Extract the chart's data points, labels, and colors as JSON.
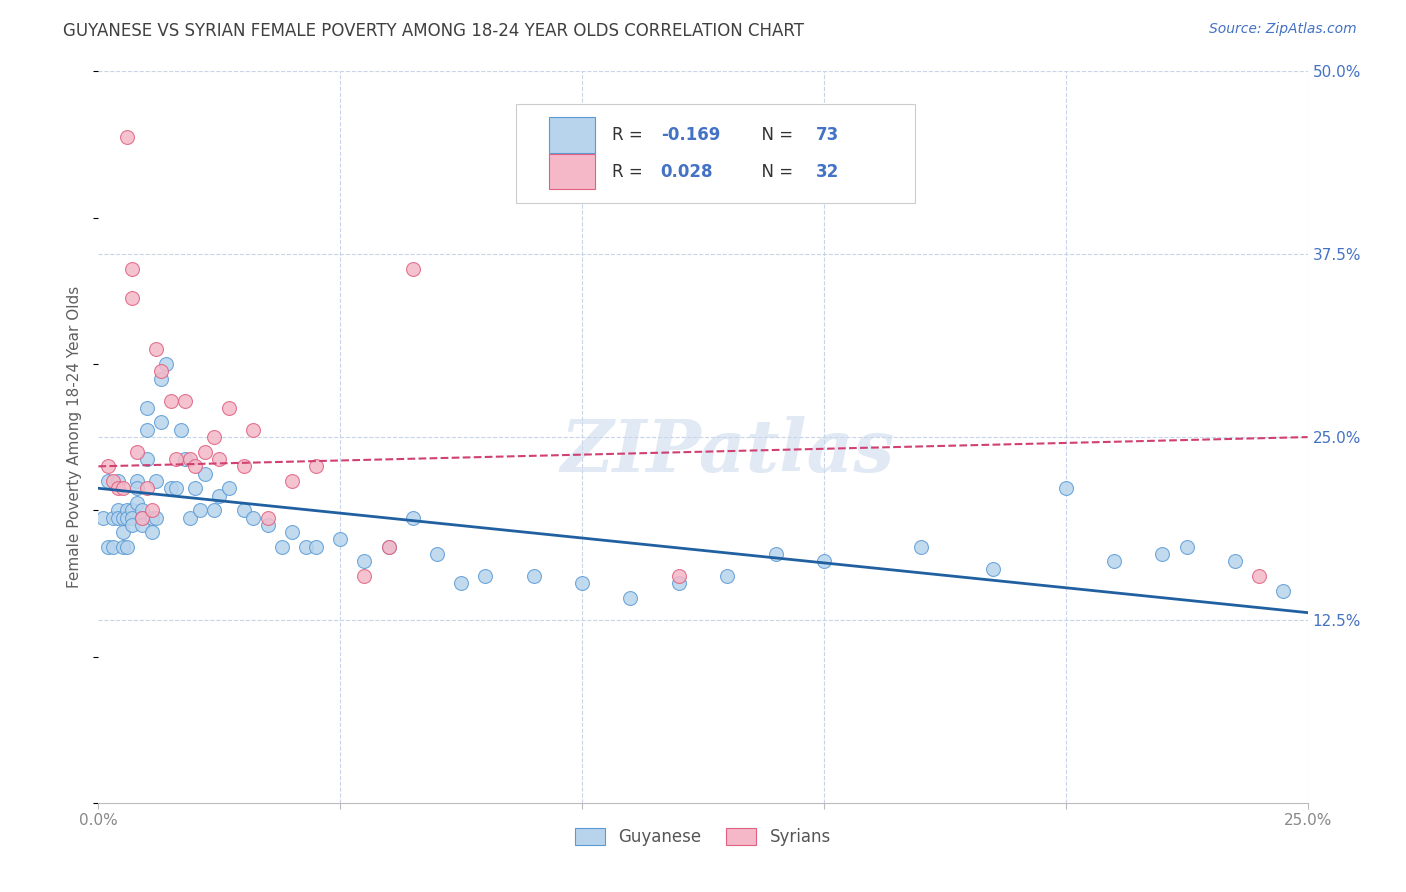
{
  "title": "GUYANESE VS SYRIAN FEMALE POVERTY AMONG 18-24 YEAR OLDS CORRELATION CHART",
  "source": "Source: ZipAtlas.com",
  "ylabel": "Female Poverty Among 18-24 Year Olds",
  "xlim": [
    0.0,
    0.25
  ],
  "ylim": [
    0.0,
    0.5
  ],
  "legend_R_guyanese": "-0.169",
  "legend_N_guyanese": "73",
  "legend_R_syrians": "0.028",
  "legend_N_syrians": "32",
  "color_guyanese_fill": "#b8d4ec",
  "color_guyanese_edge": "#5b9bd5",
  "color_syrians_fill": "#f4b8c8",
  "color_syrians_edge": "#e06080",
  "color_line_guyanese": "#2060a0",
  "color_line_syrians": "#d04070",
  "watermark": "ZIPatlas",
  "background_color": "#ffffff",
  "grid_color": "#c8d4e8",
  "title_color": "#404040",
  "source_color": "#4472c4",
  "axis_label_color": "#606060",
  "tick_color_right": "#4472c4",
  "guyanese_x": [
    0.001,
    0.002,
    0.002,
    0.003,
    0.003,
    0.004,
    0.004,
    0.004,
    0.005,
    0.005,
    0.005,
    0.006,
    0.006,
    0.006,
    0.007,
    0.007,
    0.007,
    0.008,
    0.008,
    0.008,
    0.009,
    0.009,
    0.009,
    0.01,
    0.01,
    0.01,
    0.011,
    0.011,
    0.012,
    0.012,
    0.013,
    0.013,
    0.014,
    0.015,
    0.016,
    0.017,
    0.018,
    0.019,
    0.02,
    0.021,
    0.022,
    0.024,
    0.025,
    0.027,
    0.03,
    0.032,
    0.035,
    0.038,
    0.04,
    0.043,
    0.045,
    0.05,
    0.055,
    0.06,
    0.065,
    0.07,
    0.075,
    0.08,
    0.09,
    0.1,
    0.11,
    0.12,
    0.13,
    0.14,
    0.15,
    0.17,
    0.185,
    0.2,
    0.21,
    0.22,
    0.225,
    0.235,
    0.245
  ],
  "guyanese_y": [
    0.195,
    0.175,
    0.22,
    0.195,
    0.175,
    0.22,
    0.2,
    0.195,
    0.195,
    0.185,
    0.175,
    0.2,
    0.195,
    0.175,
    0.2,
    0.195,
    0.19,
    0.22,
    0.215,
    0.205,
    0.2,
    0.195,
    0.19,
    0.27,
    0.255,
    0.235,
    0.195,
    0.185,
    0.22,
    0.195,
    0.29,
    0.26,
    0.3,
    0.215,
    0.215,
    0.255,
    0.235,
    0.195,
    0.215,
    0.2,
    0.225,
    0.2,
    0.21,
    0.215,
    0.2,
    0.195,
    0.19,
    0.175,
    0.185,
    0.175,
    0.175,
    0.18,
    0.165,
    0.175,
    0.195,
    0.17,
    0.15,
    0.155,
    0.155,
    0.15,
    0.14,
    0.15,
    0.155,
    0.17,
    0.165,
    0.175,
    0.16,
    0.215,
    0.165,
    0.17,
    0.175,
    0.165,
    0.145
  ],
  "syrians_x": [
    0.002,
    0.003,
    0.004,
    0.005,
    0.006,
    0.007,
    0.007,
    0.008,
    0.009,
    0.01,
    0.011,
    0.012,
    0.013,
    0.015,
    0.016,
    0.018,
    0.019,
    0.02,
    0.022,
    0.024,
    0.025,
    0.027,
    0.03,
    0.032,
    0.035,
    0.04,
    0.045,
    0.055,
    0.06,
    0.065,
    0.12,
    0.24
  ],
  "syrians_y": [
    0.23,
    0.22,
    0.215,
    0.215,
    0.455,
    0.365,
    0.345,
    0.24,
    0.195,
    0.215,
    0.2,
    0.31,
    0.295,
    0.275,
    0.235,
    0.275,
    0.235,
    0.23,
    0.24,
    0.25,
    0.235,
    0.27,
    0.23,
    0.255,
    0.195,
    0.22,
    0.23,
    0.155,
    0.175,
    0.365,
    0.155,
    0.155
  ],
  "line_guyanese_x0": 0.0,
  "line_guyanese_y0": 0.215,
  "line_guyanese_x1": 0.25,
  "line_guyanese_y1": 0.13,
  "line_syrians_x0": 0.0,
  "line_syrians_y0": 0.23,
  "line_syrians_x1": 0.25,
  "line_syrians_y1": 0.25
}
